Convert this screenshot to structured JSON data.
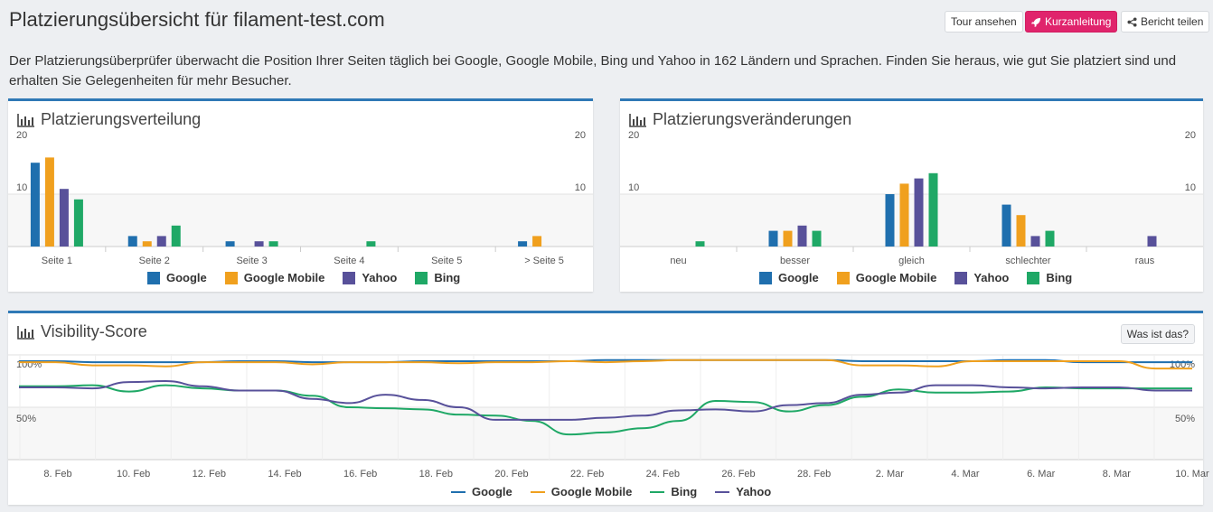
{
  "header": {
    "title": "Platzierungsübersicht für filament-test.com",
    "tour_label": "Tour ansehen",
    "quick_label": "Kurzanleitung",
    "share_label": "Bericht teilen"
  },
  "intro": "Der Platzierungsüberprüfer überwacht die Position Ihrer Seiten täglich bei Google, Google Mobile, Bing und Yahoo in 162 Ländern und Sprachen. Finden Sie heraus, wie gut Sie platziert sind und erhalten Sie Gelegenheiten für mehr Besucher.",
  "colors": {
    "google": "#1f6fae",
    "google_mobile": "#f0a01e",
    "yahoo": "#58519a",
    "bing": "#1fa866",
    "accent": "#2f79b6",
    "primary": "#e0246c"
  },
  "panels": {
    "distribution": {
      "title": "Platzierungsverteilung"
    },
    "changes": {
      "title": "Platzierungsveränderungen"
    },
    "visibility": {
      "title": "Visibility-Score",
      "info_label": "Was ist das?"
    }
  },
  "chart_data": [
    {
      "type": "bar",
      "ylim": [
        0,
        20
      ],
      "yticks": [
        "10",
        "20"
      ],
      "categories": [
        "Seite 1",
        "Seite 2",
        "Seite 3",
        "Seite 4",
        "Seite 5",
        "> Seite 5"
      ],
      "series": [
        {
          "name": "Google",
          "values": [
            16,
            2,
            1,
            0,
            0,
            1
          ]
        },
        {
          "name": "Google Mobile",
          "values": [
            17,
            1,
            0,
            0,
            0,
            2
          ]
        },
        {
          "name": "Yahoo",
          "values": [
            11,
            2,
            1,
            0,
            0,
            0
          ]
        },
        {
          "name": "Bing",
          "values": [
            9,
            4,
            1,
            1,
            0,
            0
          ]
        }
      ]
    },
    {
      "type": "bar",
      "ylim": [
        0,
        20
      ],
      "yticks": [
        "10",
        "20"
      ],
      "categories": [
        "neu",
        "besser",
        "gleich",
        "schlechter",
        "raus"
      ],
      "series": [
        {
          "name": "Google",
          "values": [
            0,
            3,
            10,
            8,
            0
          ]
        },
        {
          "name": "Google Mobile",
          "values": [
            0,
            3,
            12,
            6,
            0
          ]
        },
        {
          "name": "Yahoo",
          "values": [
            0,
            4,
            13,
            2,
            2
          ]
        },
        {
          "name": "Bing",
          "values": [
            1,
            3,
            14,
            3,
            0
          ]
        }
      ]
    },
    {
      "type": "line",
      "yticks": [
        "50%",
        "100%"
      ],
      "xtick_labels": [
        "8. Feb",
        "10. Feb",
        "12. Feb",
        "14. Feb",
        "16. Feb",
        "18. Feb",
        "20. Feb",
        "22. Feb",
        "24. Feb",
        "26. Feb",
        "28. Feb",
        "2. Mar",
        "4. Mar",
        "6. Mar",
        "8. Mar",
        "10. Mar"
      ],
      "ylim": [
        0,
        100
      ],
      "series": [
        {
          "name": "Google",
          "values": [
            94,
            94,
            93,
            93,
            93,
            93,
            94,
            94,
            93,
            93,
            93,
            94,
            94,
            94,
            94,
            94,
            95,
            95,
            95,
            95,
            95,
            95,
            95,
            94,
            94,
            94,
            94,
            95,
            95,
            93,
            93,
            93,
            93
          ]
        },
        {
          "name": "Google Mobile",
          "values": [
            93,
            93,
            90,
            90,
            89,
            93,
            93,
            93,
            91,
            93,
            93,
            93,
            92,
            93,
            93,
            94,
            93,
            94,
            95,
            95,
            95,
            95,
            95,
            90,
            90,
            89,
            94,
            94,
            94,
            94,
            94,
            87,
            87
          ]
        },
        {
          "name": "Bing",
          "values": [
            70,
            70,
            71,
            65,
            71,
            68,
            66,
            66,
            61,
            50,
            49,
            48,
            43,
            42,
            37,
            24,
            26,
            30,
            37,
            56,
            55,
            46,
            52,
            60,
            67,
            64,
            64,
            65,
            69,
            68,
            68,
            68,
            68
          ]
        },
        {
          "name": "Yahoo",
          "values": [
            69,
            69,
            68,
            74,
            75,
            70,
            66,
            66,
            58,
            54,
            62,
            57,
            50,
            38,
            38,
            38,
            40,
            42,
            47,
            48,
            46,
            52,
            54,
            62,
            64,
            71,
            71,
            69,
            68,
            69,
            69,
            66,
            66
          ]
        }
      ]
    }
  ],
  "legend": [
    "Google",
    "Google Mobile",
    "Yahoo",
    "Bing"
  ],
  "legend_line": [
    "Google",
    "Google Mobile",
    "Bing",
    "Yahoo"
  ]
}
